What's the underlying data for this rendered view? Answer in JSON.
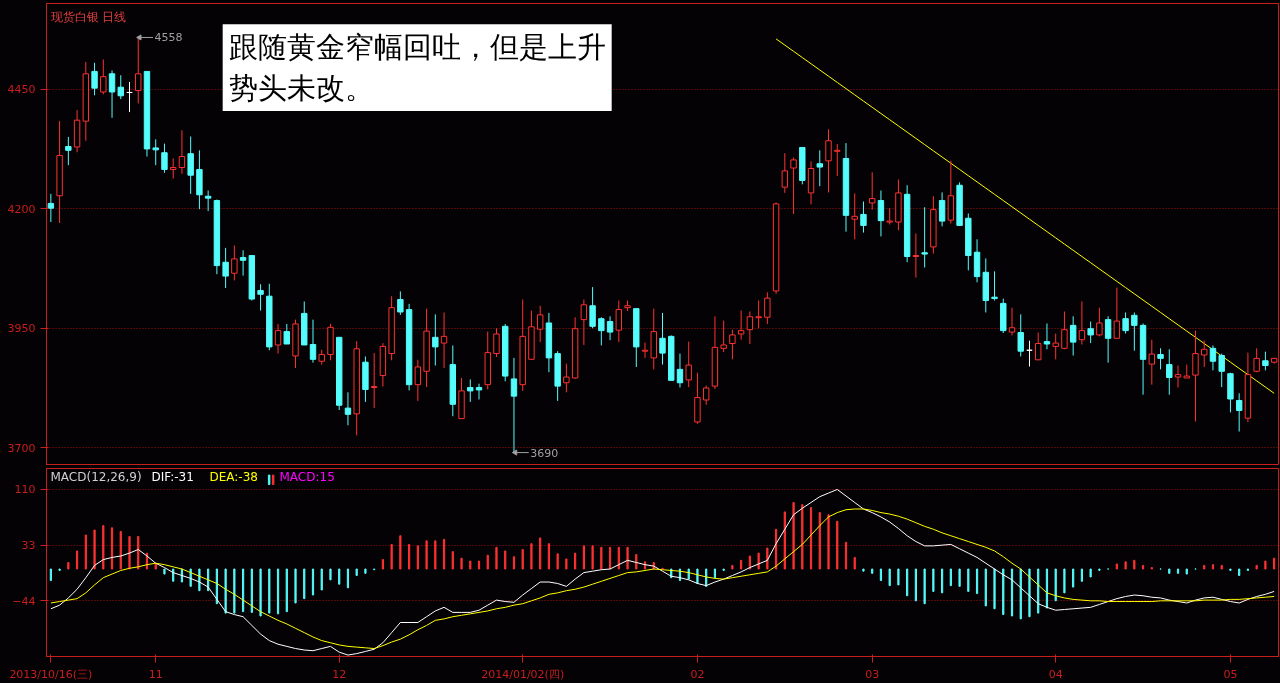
{
  "chart_data": [
    {
      "type": "candlestick",
      "title": "现货白银 日线",
      "ylim": [
        3663,
        4629
      ],
      "yticks": [
        3700,
        3950,
        4200,
        4450
      ],
      "grid": "y",
      "tick_labels": "y",
      "categories": [
        null,
        null,
        null,
        null,
        null,
        null,
        null,
        null,
        null,
        null,
        null,
        null,
        null,
        null,
        null,
        null,
        null,
        null,
        null,
        null,
        null,
        null,
        null,
        null,
        null,
        null,
        null,
        null,
        null,
        null,
        null,
        null,
        null,
        null,
        null,
        null,
        null,
        null,
        null,
        null,
        null,
        null,
        null,
        null,
        null,
        null,
        null,
        null,
        null,
        null,
        null,
        null,
        null,
        null,
        null,
        null,
        null,
        null,
        null,
        null,
        null,
        null,
        null,
        null,
        null,
        null,
        null,
        null,
        null,
        null,
        null,
        null,
        null,
        null,
        null,
        null,
        null,
        null,
        null,
        null,
        null,
        null,
        null,
        null,
        null,
        null,
        null,
        null,
        null,
        null,
        null,
        null,
        null,
        null,
        null,
        null,
        null,
        null,
        null,
        null,
        null,
        null,
        null,
        null,
        null,
        null,
        null,
        null,
        null,
        null,
        null,
        null,
        null,
        null,
        null,
        null,
        null,
        null,
        null,
        null,
        null,
        null,
        null,
        null,
        null,
        null,
        null,
        null,
        null,
        null,
        null,
        null,
        null,
        null,
        null,
        null,
        null,
        null,
        null,
        null,
        null
      ],
      "ohlc": [
        [
          4211,
          4231,
          4172,
          4201
        ],
        [
          4227,
          4383,
          4170,
          4311
        ],
        [
          4330,
          4350,
          4291,
          4322
        ],
        [
          4329,
          4406,
          4318,
          4385
        ],
        [
          4383,
          4507,
          4342,
          4482
        ],
        [
          4487,
          4505,
          4437,
          4452
        ],
        [
          4444,
          4512,
          4439,
          4476
        ],
        [
          4482,
          4489,
          4390,
          4444
        ],
        [
          4454,
          4479,
          4429,
          4436
        ],
        [
          4443,
          4465,
          4402,
          4443
        ],
        [
          4447,
          4558,
          4420,
          4482
        ],
        [
          4487,
          4487,
          4309,
          4325
        ],
        [
          4327,
          4345,
          4291,
          4323
        ],
        [
          4317,
          4336,
          4275,
          4282
        ],
        [
          4282,
          4305,
          4263,
          4286
        ],
        [
          4286,
          4364,
          4273,
          4309
        ],
        [
          4315,
          4351,
          4231,
          4270
        ],
        [
          4282,
          4322,
          4199,
          4229
        ],
        [
          4226,
          4238,
          4195,
          4222
        ],
        [
          4217,
          4219,
          4063,
          4081
        ],
        [
          4088,
          4118,
          4034,
          4059
        ],
        [
          4065,
          4123,
          4050,
          4095
        ],
        [
          4098,
          4113,
          4060,
          4092
        ],
        [
          4102,
          4102,
          4008,
          4011
        ],
        [
          4029,
          4042,
          3987,
          4021
        ],
        [
          4017,
          4043,
          3904,
          3911
        ],
        [
          3915,
          3959,
          3897,
          3945
        ],
        [
          3943,
          3959,
          3917,
          3917
        ],
        [
          3892,
          3968,
          3867,
          3959
        ],
        [
          3981,
          4006,
          3915,
          3915
        ],
        [
          3916,
          3968,
          3878,
          3885
        ],
        [
          3881,
          3905,
          3874,
          3895
        ],
        [
          3895,
          3959,
          3883,
          3952
        ],
        [
          3931,
          3931,
          3779,
          3789
        ],
        [
          3783,
          3816,
          3747,
          3770
        ],
        [
          3771,
          3923,
          3726,
          3907
        ],
        [
          3879,
          3891,
          3796,
          3822
        ],
        [
          3826,
          3898,
          3783,
          3828
        ],
        [
          3851,
          3919,
          3828,
          3912
        ],
        [
          3897,
          4017,
          3883,
          3993
        ],
        [
          4010,
          4027,
          3978,
          3984
        ],
        [
          3989,
          4001,
          3820,
          3832
        ],
        [
          3832,
          3884,
          3798,
          3869
        ],
        [
          3860,
          3991,
          3827,
          3944
        ],
        [
          3931,
          3979,
          3872,
          3911
        ],
        [
          3919,
          3983,
          3867,
          3933
        ],
        [
          3874,
          3914,
          3766,
          3791
        ],
        [
          3761,
          3846,
          3761,
          3819
        ],
        [
          3826,
          3843,
          3796,
          3819
        ],
        [
          3826,
          3834,
          3801,
          3821
        ],
        [
          3832,
          3943,
          3822,
          3899
        ],
        [
          3897,
          3950,
          3890,
          3938
        ],
        [
          3954,
          3959,
          3839,
          3850
        ],
        [
          3844,
          3888,
          3690,
          3808
        ],
        [
          3832,
          4010,
          3819,
          3933
        ],
        [
          3885,
          3987,
          3885,
          3953
        ],
        [
          3948,
          3997,
          3921,
          3978
        ],
        [
          3961,
          3982,
          3858,
          3888
        ],
        [
          3897,
          3902,
          3798,
          3829
        ],
        [
          3836,
          3876,
          3816,
          3848
        ],
        [
          3846,
          3973,
          3844,
          3949
        ],
        [
          3968,
          4010,
          3915,
          3999
        ],
        [
          3997,
          4036,
          3950,
          3954
        ],
        [
          3970,
          3973,
          3914,
          3945
        ],
        [
          3964,
          3975,
          3925,
          3942
        ],
        [
          3946,
          4008,
          3921,
          3989
        ],
        [
          3993,
          4008,
          3986,
          3997
        ],
        [
          3991,
          3991,
          3869,
          3911
        ],
        [
          3902,
          3920,
          3888,
          3904
        ],
        [
          3888,
          3991,
          3864,
          3943
        ],
        [
          3929,
          3982,
          3874,
          3898
        ],
        [
          3933,
          3935,
          3841,
          3841
        ],
        [
          3864,
          3897,
          3826,
          3836
        ],
        [
          3842,
          3922,
          3827,
          3873
        ],
        [
          3754,
          3857,
          3750,
          3805
        ],
        [
          3800,
          3830,
          3790,
          3825
        ],
        [
          3829,
          3975,
          3823,
          3910
        ],
        [
          3908,
          3966,
          3900,
          3915
        ],
        [
          3918,
          3947,
          3885,
          3936
        ],
        [
          3938,
          3987,
          3926,
          3945
        ],
        [
          3947,
          3985,
          3917,
          3974
        ],
        [
          3972,
          4008,
          3950,
          3974
        ],
        [
          3973,
          4025,
          3959,
          4013
        ],
        [
          4028,
          4213,
          4022,
          4210
        ],
        [
          4245,
          4316,
          4233,
          4279
        ],
        [
          4285,
          4307,
          4189,
          4302
        ],
        [
          4328,
          4328,
          4251,
          4259
        ],
        [
          4233,
          4299,
          4209,
          4284
        ],
        [
          4294,
          4322,
          4247,
          4287
        ],
        [
          4300,
          4366,
          4234,
          4342
        ],
        [
          4320,
          4335,
          4268,
          4322
        ],
        [
          4305,
          4337,
          4152,
          4186
        ],
        [
          4178,
          4232,
          4136,
          4184
        ],
        [
          4188,
          4215,
          4150,
          4165
        ],
        [
          4212,
          4276,
          4198,
          4221
        ],
        [
          4217,
          4238,
          4142,
          4175
        ],
        [
          4172,
          4201,
          4167,
          4174
        ],
        [
          4172,
          4261,
          4155,
          4233
        ],
        [
          4230,
          4249,
          4088,
          4100
        ],
        [
          4100,
          4148,
          4056,
          4102
        ],
        [
          4108,
          4203,
          4077,
          4105
        ],
        [
          4120,
          4226,
          4106,
          4198
        ],
        [
          4217,
          4234,
          4163,
          4174
        ],
        [
          4176,
          4300,
          4169,
          4227
        ],
        [
          4249,
          4255,
          4165,
          4165
        ],
        [
          4180,
          4190,
          4071,
          4102
        ],
        [
          4109,
          4136,
          4046,
          4058
        ],
        [
          4067,
          4096,
          3983,
          4008
        ],
        [
          4015,
          4069,
          4008,
          4012
        ],
        [
          4002,
          4012,
          3940,
          3945
        ],
        [
          3942,
          3993,
          3935,
          3951
        ],
        [
          3941,
          3979,
          3891,
          3902
        ],
        [
          3904,
          3924,
          3870,
          3904
        ],
        [
          3884,
          3941,
          3884,
          3918
        ],
        [
          3922,
          3960,
          3906,
          3917
        ],
        [
          3912,
          3939,
          3885,
          3919
        ],
        [
          3908,
          3985,
          3906,
          3947
        ],
        [
          3956,
          3975,
          3893,
          3921
        ],
        [
          3926,
          4006,
          3916,
          3945
        ],
        [
          3949,
          3964,
          3919,
          3936
        ],
        [
          3936,
          3993,
          3933,
          3961
        ],
        [
          3968,
          3975,
          3878,
          3929
        ],
        [
          3929,
          4035,
          3929,
          3965
        ],
        [
          3970,
          3983,
          3939,
          3945
        ],
        [
          3977,
          3983,
          3903,
          3956
        ],
        [
          3956,
          3960,
          3811,
          3885
        ],
        [
          3875,
          3926,
          3832,
          3896
        ],
        [
          3895,
          3908,
          3864,
          3887
        ],
        [
          3874,
          3906,
          3811,
          3847
        ],
        [
          3848,
          3872,
          3826,
          3853
        ],
        [
          3846,
          3874,
          3846,
          3850
        ],
        [
          3852,
          3945,
          3755,
          3897
        ],
        [
          3894,
          3924,
          3869,
          3906
        ],
        [
          3908,
          3914,
          3862,
          3881
        ],
        [
          3893,
          3897,
          3827,
          3860
        ],
        [
          3855,
          3857,
          3774,
          3802
        ],
        [
          3799,
          3814,
          3734,
          3778
        ],
        [
          3762,
          3899,
          3754,
          3853
        ],
        [
          3860,
          3908,
          3858,
          3887
        ],
        [
          3882,
          3901,
          3862,
          3872
        ],
        [
          3879,
          3887,
          3876,
          3887
        ]
      ],
      "colors": [
        "#54fcfc",
        "#ff3232",
        "#54fcfc",
        "#ff3232",
        "#ff3232",
        "#54fcfc",
        "#ff3232",
        "#54fcfc",
        "#54fcfc",
        "#ffffff",
        "#ff3232",
        "#54fcfc",
        "#54fcfc",
        "#54fcfc",
        "#ff3232",
        "#ff3232",
        "#54fcfc",
        "#54fcfc",
        "#54fcfc",
        "#54fcfc",
        "#54fcfc",
        "#ff3232",
        "#54fcfc",
        "#54fcfc",
        "#54fcfc",
        "#54fcfc",
        "#ff3232",
        "#54fcfc",
        "#ff3232",
        "#54fcfc",
        "#54fcfc",
        "#ff3232",
        "#ff3232",
        "#54fcfc",
        "#54fcfc",
        "#ff3232",
        "#54fcfc",
        "#ff3232",
        "#ff3232",
        "#ff3232",
        "#54fcfc",
        "#54fcfc",
        "#ff3232",
        "#ff3232",
        "#54fcfc",
        "#ff3232",
        "#54fcfc",
        "#ff3232",
        "#54fcfc",
        "#54fcfc",
        "#ff3232",
        "#ff3232",
        "#54fcfc",
        "#54fcfc",
        "#ff3232",
        "#ff3232",
        "#ff3232",
        "#54fcfc",
        "#54fcfc",
        "#ff3232",
        "#ff3232",
        "#ff3232",
        "#54fcfc",
        "#54fcfc",
        "#54fcfc",
        "#ff3232",
        "#ff3232",
        "#54fcfc",
        "#ff3232",
        "#ff3232",
        "#54fcfc",
        "#54fcfc",
        "#54fcfc",
        "#ff3232",
        "#ff3232",
        "#ff3232",
        "#ff3232",
        "#ff3232",
        "#ff3232",
        "#ff3232",
        "#ff3232",
        "#ff3232",
        "#ff3232",
        "#ff3232",
        "#ff3232",
        "#ff3232",
        "#54fcfc",
        "#ff3232",
        "#54fcfc",
        "#ff3232",
        "#ff3232",
        "#54fcfc",
        "#ff3232",
        "#54fcfc",
        "#ff3232",
        "#54fcfc",
        "#ff3232",
        "#ff3232",
        "#54fcfc",
        "#ff3232",
        "#54fcfc",
        "#ff3232",
        "#54fcfc",
        "#ff3232",
        "#54fcfc",
        "#54fcfc",
        "#54fcfc",
        "#54fcfc",
        "#54fcfc",
        "#54fcfc",
        "#ff3232",
        "#54fcfc",
        "#ffffff",
        "#ff3232",
        "#54fcfc",
        "#ff3232",
        "#ff3232",
        "#54fcfc",
        "#ff3232",
        "#54fcfc",
        "#ff3232",
        "#54fcfc",
        "#ff3232",
        "#54fcfc",
        "#54fcfc",
        "#54fcfc",
        "#ff3232",
        "#54fcfc",
        "#54fcfc",
        "#ff3232",
        "#ff3232",
        "#ff3232",
        "#ff3232",
        "#54fcfc",
        "#54fcfc",
        "#54fcfc",
        "#54fcfc",
        "#ff3232",
        "#ff3232",
        "#54fcfc",
        "#ff3232"
      ],
      "series": [
        {
          "type": "line",
          "color": "#ffff00",
          "values": [
            null,
            null,
            null,
            null,
            null,
            null,
            null,
            null,
            null,
            null,
            null,
            null,
            null,
            null,
            null,
            null,
            null,
            null,
            null,
            null,
            null,
            null,
            null,
            null,
            null,
            null,
            null,
            null,
            null,
            null,
            null,
            null,
            null,
            null,
            null,
            null,
            null,
            null,
            null,
            null,
            null,
            null,
            null,
            null,
            null,
            null,
            null,
            null,
            null,
            null,
            null,
            null,
            null,
            null,
            null,
            null,
            null,
            null,
            null,
            null,
            null,
            null,
            null,
            null,
            null,
            null,
            null,
            null,
            null,
            null,
            null,
            null,
            null,
            null,
            null,
            null,
            null,
            null,
            null,
            null,
            null,
            null,
            null,
            4555,
            4542,
            4529,
            4516,
            4503,
            4490,
            4477,
            4464,
            4451,
            4438,
            4425,
            4412,
            4399,
            4386,
            4373,
            4360,
            4347,
            4334,
            4321,
            4308,
            4295,
            4282,
            4269,
            4256,
            4243,
            4230,
            4217,
            4204,
            4191,
            4178,
            4165,
            4152,
            4139,
            4126,
            4113,
            4100,
            4087,
            4074,
            4061,
            4048,
            4035,
            4022,
            4009,
            3996,
            3983,
            3970,
            3957,
            3944,
            3931,
            3918,
            3905,
            3892,
            3879,
            3866,
            3853,
            3840,
            3827,
            3814
          ]
        }
      ],
      "annotations": [
        "跟随黄金窄幅回吐，但是上升势头未改。",
        "4558",
        "3690"
      ]
    },
    {
      "type": "bar",
      "title": "MACD(12,26,9)",
      "legend": "top left",
      "ylim": [
        -121,
        139
      ],
      "yticks": [
        110,
        33,
        -44
      ],
      "grid": "y",
      "categories": [
        "2013/10/16(三)",
        null,
        null,
        null,
        null,
        null,
        null,
        null,
        null,
        null,
        null,
        null,
        "11",
        null,
        null,
        null,
        null,
        null,
        null,
        null,
        null,
        null,
        null,
        null,
        null,
        null,
        null,
        null,
        null,
        null,
        null,
        null,
        null,
        "12",
        null,
        null,
        null,
        null,
        null,
        null,
        null,
        null,
        null,
        null,
        null,
        null,
        null,
        null,
        null,
        null,
        null,
        null,
        null,
        null,
        "2014/01/02(四)",
        null,
        null,
        null,
        null,
        null,
        null,
        null,
        null,
        null,
        null,
        null,
        null,
        null,
        null,
        null,
        null,
        null,
        null,
        null,
        "02",
        null,
        null,
        null,
        null,
        null,
        null,
        null,
        null,
        null,
        null,
        null,
        null,
        null,
        null,
        null,
        null,
        null,
        null,
        null,
        "03",
        null,
        null,
        null,
        null,
        null,
        null,
        null,
        null,
        null,
        null,
        null,
        null,
        null,
        null,
        null,
        null,
        null,
        null,
        null,
        null,
        "04",
        null,
        null,
        null,
        null,
        null,
        null,
        null,
        null,
        null,
        null,
        null,
        null,
        null,
        null,
        null,
        null,
        null,
        null,
        null,
        "05",
        null,
        null,
        null,
        null,
        null
      ],
      "series": [
        {
          "name": "MACD:15",
          "type": "bar",
          "color": "#ff00ff",
          "values": [
            -16,
            -2,
            9,
            25,
            47,
            54,
            60,
            57,
            52,
            45,
            45,
            22,
            8,
            -7,
            -17,
            -18,
            -24,
            -30,
            -30,
            -48,
            -61,
            -61,
            -59,
            -60,
            -65,
            -61,
            -62,
            -59,
            -47,
            -41,
            -36,
            -29,
            -15,
            -21,
            -26,
            -9,
            -6,
            -1,
            13,
            34,
            46,
            34,
            32,
            39,
            39,
            41,
            24,
            15,
            11,
            11,
            19,
            30,
            25,
            17,
            27,
            35,
            43,
            35,
            21,
            14,
            22,
            32,
            32,
            30,
            30,
            30,
            30,
            20,
            10,
            9,
            1,
            -12,
            -16,
            -14,
            -20,
            -24,
            -12,
            -2,
            5,
            12,
            18,
            22,
            29,
            55,
            79,
            92,
            89,
            85,
            78,
            75,
            66,
            37,
            16,
            -3,
            -6,
            -16,
            -23,
            -22,
            -37,
            -44,
            -48,
            -31,
            -33,
            -23,
            -24,
            -31,
            -34,
            -51,
            -55,
            -63,
            -65,
            -69,
            -66,
            -61,
            -54,
            -44,
            -33,
            -25,
            -17,
            -11,
            -2,
            0,
            7,
            10,
            12,
            5,
            2,
            0,
            -6,
            -6,
            -7,
            0,
            5,
            6,
            5,
            -2,
            -9,
            -2,
            5,
            11,
            15
          ],
          "colors": [
            "#54fcfc",
            "#54fcfc",
            "#ff3232",
            "#ff3232",
            "#ff3232",
            "#ff3232",
            "#ff3232",
            "#ff3232",
            "#ff3232",
            "#ff3232",
            "#ff3232",
            "#ff3232",
            "#ff3232",
            "#54fcfc",
            "#54fcfc",
            "#54fcfc",
            "#54fcfc",
            "#54fcfc",
            "#54fcfc",
            "#54fcfc",
            "#54fcfc",
            "#54fcfc",
            "#54fcfc",
            "#54fcfc",
            "#54fcfc",
            "#54fcfc",
            "#54fcfc",
            "#54fcfc",
            "#54fcfc",
            "#54fcfc",
            "#54fcfc",
            "#54fcfc",
            "#54fcfc",
            "#54fcfc",
            "#54fcfc",
            "#54fcfc",
            "#54fcfc",
            "#54fcfc",
            "#ff3232",
            "#ff3232",
            "#ff3232",
            "#ff3232",
            "#ff3232",
            "#ff3232",
            "#ff3232",
            "#ff3232",
            "#ff3232",
            "#ff3232",
            "#ff3232",
            "#ff3232",
            "#ff3232",
            "#ff3232",
            "#ff3232",
            "#ff3232",
            "#ff3232",
            "#ff3232",
            "#ff3232",
            "#ff3232",
            "#ff3232",
            "#ff3232",
            "#ff3232",
            "#ff3232",
            "#ff3232",
            "#ff3232",
            "#ff3232",
            "#ff3232",
            "#ff3232",
            "#ff3232",
            "#ff3232",
            "#ff3232",
            "#ff3232",
            "#54fcfc",
            "#54fcfc",
            "#54fcfc",
            "#54fcfc",
            "#54fcfc",
            "#54fcfc",
            "#54fcfc",
            "#ff3232",
            "#ff3232",
            "#ff3232",
            "#ff3232",
            "#ff3232",
            "#ff3232",
            "#ff3232",
            "#ff3232",
            "#ff3232",
            "#ff3232",
            "#ff3232",
            "#ff3232",
            "#ff3232",
            "#ff3232",
            "#ff3232",
            "#54fcfc",
            "#54fcfc",
            "#54fcfc",
            "#54fcfc",
            "#54fcfc",
            "#54fcfc",
            "#54fcfc",
            "#54fcfc",
            "#54fcfc",
            "#54fcfc",
            "#54fcfc",
            "#54fcfc",
            "#54fcfc",
            "#54fcfc",
            "#54fcfc",
            "#54fcfc",
            "#54fcfc",
            "#54fcfc",
            "#54fcfc",
            "#54fcfc",
            "#54fcfc",
            "#54fcfc",
            "#54fcfc",
            "#54fcfc",
            "#54fcfc",
            "#54fcfc",
            "#54fcfc",
            "#54fcfc",
            "#54fcfc",
            "#ff3232",
            "#ff3232",
            "#ff3232",
            "#ff3232",
            "#ff3232",
            "#54fcfc",
            "#54fcfc",
            "#54fcfc",
            "#54fcfc",
            "#54fcfc",
            "#ff3232",
            "#ff3232",
            "#ff3232",
            "#54fcfc",
            "#54fcfc",
            "#54fcfc",
            "#ff3232",
            "#ff3232",
            "#ff3232"
          ]
        },
        {
          "name": "DIF:-31",
          "type": "line",
          "color": "#ffffff",
          "values": [
            -55,
            -50,
            -40,
            -28,
            -12,
            5,
            13,
            16,
            18,
            22,
            27,
            18,
            8,
            2,
            -5,
            -9,
            -13,
            -18,
            -25,
            -42,
            -59,
            -63,
            -66,
            -78,
            -90,
            -99,
            -104,
            -107,
            -110,
            -112,
            -113,
            -110,
            -107,
            -115,
            -119,
            -117,
            -114,
            -111,
            -102,
            -88,
            -74,
            -74,
            -74,
            -66,
            -58,
            -53,
            -60,
            -60,
            -60,
            -57,
            -50,
            -43,
            -45,
            -46,
            -36,
            -27,
            -18,
            -18,
            -20,
            -24,
            -14,
            -5,
            -3,
            -1,
            0,
            6,
            12,
            9,
            6,
            4,
            -3,
            -10,
            -12,
            -15,
            -20,
            -23,
            -18,
            -14,
            -9,
            -4,
            2,
            7,
            12,
            35,
            55,
            75,
            84,
            92,
            100,
            105,
            110,
            101,
            92,
            83,
            78,
            72,
            65,
            56,
            46,
            38,
            32,
            32,
            33,
            34,
            28,
            22,
            16,
            8,
            0,
            -8,
            -15,
            -26,
            -37,
            -48,
            -53,
            -57,
            -56,
            -55,
            -54,
            -53,
            -49,
            -45,
            -41,
            -38,
            -36,
            -37,
            -39,
            -40,
            -43,
            -45,
            -47,
            -43,
            -40,
            -39,
            -42,
            -45,
            -47,
            -42,
            -38,
            -35,
            -31
          ]
        },
        {
          "name": "DEA:-38",
          "type": "line",
          "color": "#ffff00",
          "values": [
            -47,
            -45,
            -43,
            -41,
            -33,
            -22,
            -12,
            -7,
            -2,
            1,
            3,
            6,
            8,
            6,
            3,
            0,
            -5,
            -10,
            -15,
            -20,
            -28,
            -35,
            -43,
            -51,
            -59,
            -65,
            -71,
            -76,
            -82,
            -88,
            -94,
            -99,
            -102,
            -105,
            -107,
            -108,
            -109,
            -110,
            -106,
            -101,
            -97,
            -91,
            -84,
            -78,
            -71,
            -69,
            -66,
            -64,
            -62,
            -60,
            -58,
            -55,
            -53,
            -50,
            -48,
            -44,
            -40,
            -35,
            -33,
            -30,
            -28,
            -25,
            -21,
            -17,
            -13,
            -9,
            -5,
            -4,
            -2,
            0,
            -1,
            -2,
            -3,
            -5,
            -8,
            -11,
            -13,
            -14,
            -12,
            -10,
            -8,
            -6,
            -4,
            4,
            14,
            24,
            34,
            47,
            60,
            72,
            78,
            82,
            83,
            83,
            81,
            78,
            76,
            73,
            69,
            64,
            59,
            55,
            50,
            46,
            42,
            38,
            34,
            30,
            25,
            17,
            8,
            0,
            -11,
            -22,
            -33,
            -37,
            -40,
            -42,
            -43,
            -44,
            -44,
            -45,
            -45,
            -45,
            -45,
            -45,
            -45,
            -44,
            -44,
            -44,
            -44,
            -44,
            -43,
            -43,
            -43,
            -42,
            -42,
            -41,
            -40,
            -39,
            -38
          ]
        }
      ]
    }
  ]
}
